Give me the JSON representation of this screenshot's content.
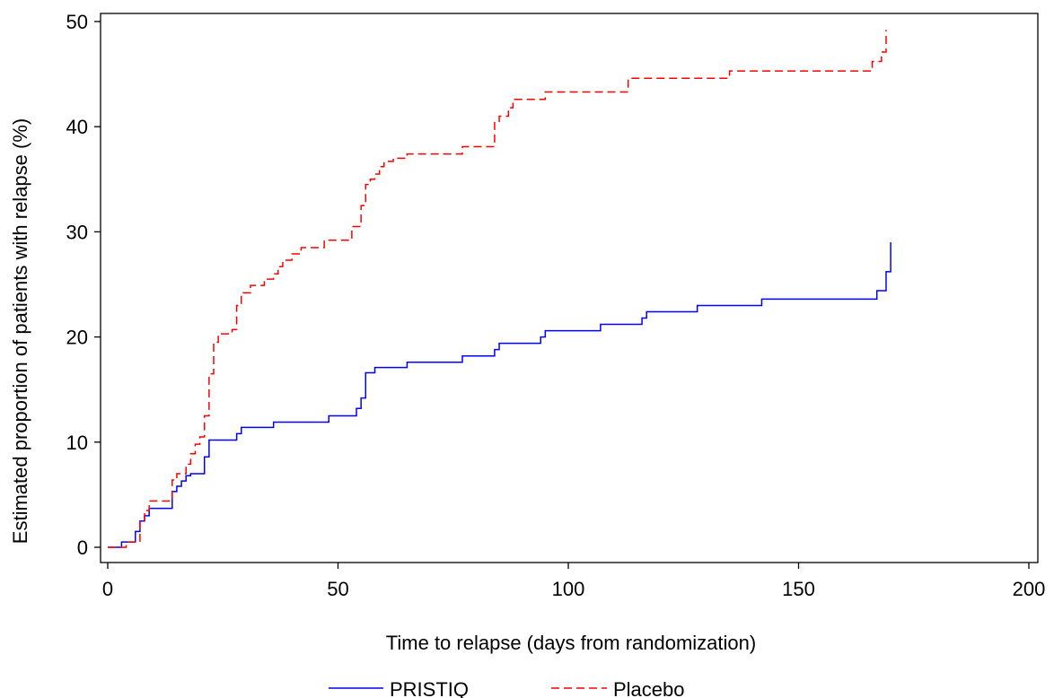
{
  "chart_data": {
    "type": "line",
    "step": true,
    "xlabel": "Time to relapse (days from randomization)",
    "ylabel": "Estimated proportion of patients with relapse (%)",
    "xlim": [
      0,
      200
    ],
    "ylim": [
      0,
      50
    ],
    "xticks": [
      0,
      50,
      100,
      150,
      200
    ],
    "yticks": [
      0,
      10,
      20,
      30,
      40,
      50
    ],
    "grid": false,
    "legend": "bottom",
    "series": [
      {
        "name": "PRISTIQ",
        "color": "#0000ff",
        "dash": "solid",
        "x": [
          0,
          3,
          6,
          7,
          8,
          9,
          14,
          15,
          16,
          17,
          18,
          21,
          22,
          28,
          29,
          36,
          48,
          54,
          55,
          56,
          58,
          65,
          77,
          84,
          85,
          94,
          95,
          107,
          116,
          117,
          128,
          142,
          167,
          169,
          170
        ],
        "y": [
          0,
          0.5,
          1.5,
          2.5,
          3,
          3.7,
          5.3,
          5.8,
          6.3,
          6.8,
          7.0,
          8.6,
          10.2,
          10.8,
          11.4,
          11.9,
          12.5,
          13.2,
          14.2,
          16.6,
          17.1,
          17.6,
          18.2,
          18.8,
          19.4,
          20.0,
          20.6,
          21.2,
          21.8,
          22.4,
          23.0,
          23.6,
          24.4,
          26.2,
          29.0
        ]
      },
      {
        "name": "Placebo",
        "color": "#ff0000",
        "dash": "dashed",
        "x": [
          0,
          4,
          7,
          8,
          9,
          14,
          15,
          17,
          18,
          19,
          20,
          21,
          22,
          23,
          24,
          27,
          28,
          29,
          31,
          34,
          36,
          37,
          38,
          40,
          42,
          47,
          53,
          55,
          56,
          57,
          58,
          59,
          60,
          62,
          65,
          77,
          84,
          85,
          87,
          88,
          95,
          113,
          135,
          166,
          168,
          169
        ],
        "y": [
          0,
          0.5,
          2.5,
          3.5,
          4.4,
          6.4,
          7.0,
          7.9,
          8.9,
          9.8,
          10.5,
          12.5,
          16.5,
          19.5,
          20.3,
          20.7,
          23.0,
          24.2,
          24.9,
          25.5,
          26.0,
          26.7,
          27.3,
          27.9,
          28.5,
          29.2,
          30.5,
          32.5,
          34.5,
          35.0,
          35.5,
          36.2,
          36.7,
          37.0,
          37.4,
          38.1,
          40.5,
          41.0,
          41.8,
          42.6,
          43.3,
          44.6,
          45.3,
          46.2,
          47.1,
          49.2
        ]
      }
    ]
  }
}
